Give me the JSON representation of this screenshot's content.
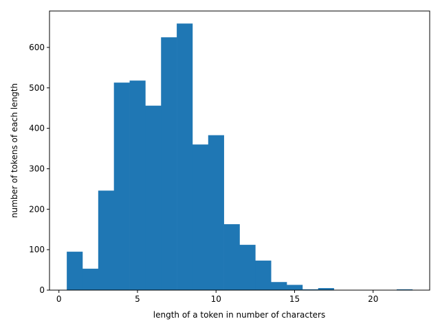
{
  "chart_data": {
    "type": "bar",
    "xlabel": "length of a token in number of characters",
    "ylabel": "number of tokens of each length",
    "xlim": [
      -0.6,
      23.6
    ],
    "ylim": [
      0,
      690
    ],
    "xticks": [
      0,
      5,
      10,
      15,
      20
    ],
    "yticks": [
      0,
      100,
      200,
      300,
      400,
      500,
      600
    ],
    "bar_color": "#1f77b4",
    "bins": [
      {
        "x": 1,
        "value": 95
      },
      {
        "x": 2,
        "value": 53
      },
      {
        "x": 3,
        "value": 246
      },
      {
        "x": 4,
        "value": 513
      },
      {
        "x": 5,
        "value": 518
      },
      {
        "x": 6,
        "value": 456
      },
      {
        "x": 7,
        "value": 625
      },
      {
        "x": 8,
        "value": 659
      },
      {
        "x": 9,
        "value": 360
      },
      {
        "x": 10,
        "value": 383
      },
      {
        "x": 11,
        "value": 163
      },
      {
        "x": 12,
        "value": 112
      },
      {
        "x": 13,
        "value": 73
      },
      {
        "x": 14,
        "value": 20
      },
      {
        "x": 15,
        "value": 13
      },
      {
        "x": 16,
        "value": 2
      },
      {
        "x": 17,
        "value": 5
      },
      {
        "x": 18,
        "value": 0
      },
      {
        "x": 19,
        "value": 0
      },
      {
        "x": 20,
        "value": 0
      },
      {
        "x": 21,
        "value": 0
      },
      {
        "x": 22,
        "value": 2
      }
    ]
  }
}
